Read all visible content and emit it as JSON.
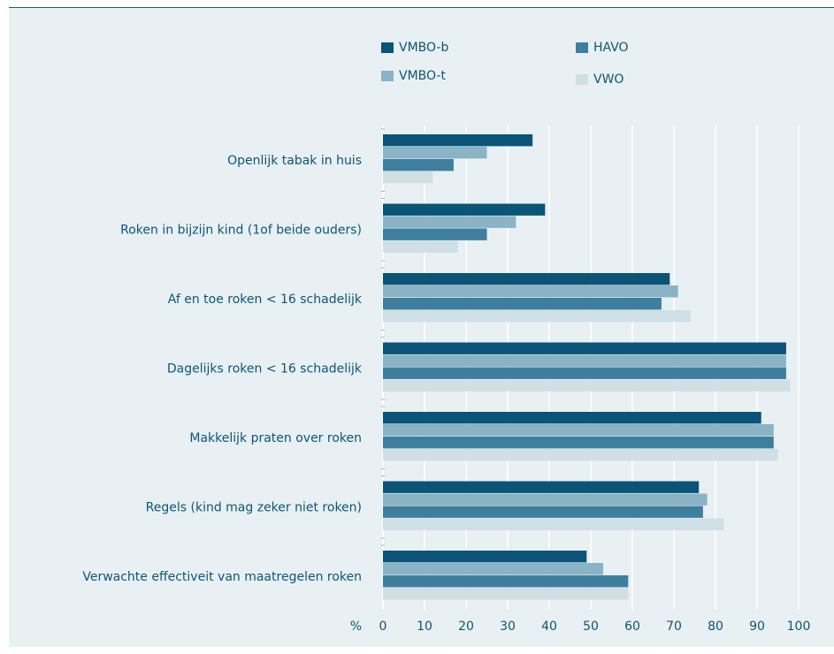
{
  "chart_data": {
    "type": "bar",
    "orientation": "horizontal",
    "categories": [
      "Openlijk tabak in huis",
      "Roken in bijzijn kind (1of beide ouders)",
      "Af en toe roken < 16 schadelijk",
      "Dagelijks roken < 16 schadelijk",
      "Makkelijk praten over roken",
      "Regels (kind mag zeker niet roken)",
      "Verwachte effectiveit van maatregelen roken"
    ],
    "series": [
      {
        "name": "VMBO-b",
        "color": "#0b5478",
        "values": [
          36,
          39,
          69,
          97,
          91,
          76,
          49
        ]
      },
      {
        "name": "VMBO-t",
        "color": "#8bb3c6",
        "values": [
          25,
          32,
          71,
          97,
          94,
          78,
          53
        ]
      },
      {
        "name": "HAVO",
        "color": "#3e7f9e",
        "values": [
          17,
          25,
          67,
          97,
          94,
          77,
          59
        ]
      },
      {
        "name": "VWO",
        "color": "#cfdfe6",
        "values": [
          12,
          18,
          74,
          98,
          95,
          82,
          59
        ]
      }
    ],
    "x_ticks": [
      "0",
      "10",
      "20",
      "30",
      "40",
      "50",
      "60",
      "70",
      "80",
      "90",
      "100"
    ],
    "xunit_label": "%",
    "xlim": [
      0,
      100
    ],
    "grid": true,
    "legend_position": "top"
  }
}
